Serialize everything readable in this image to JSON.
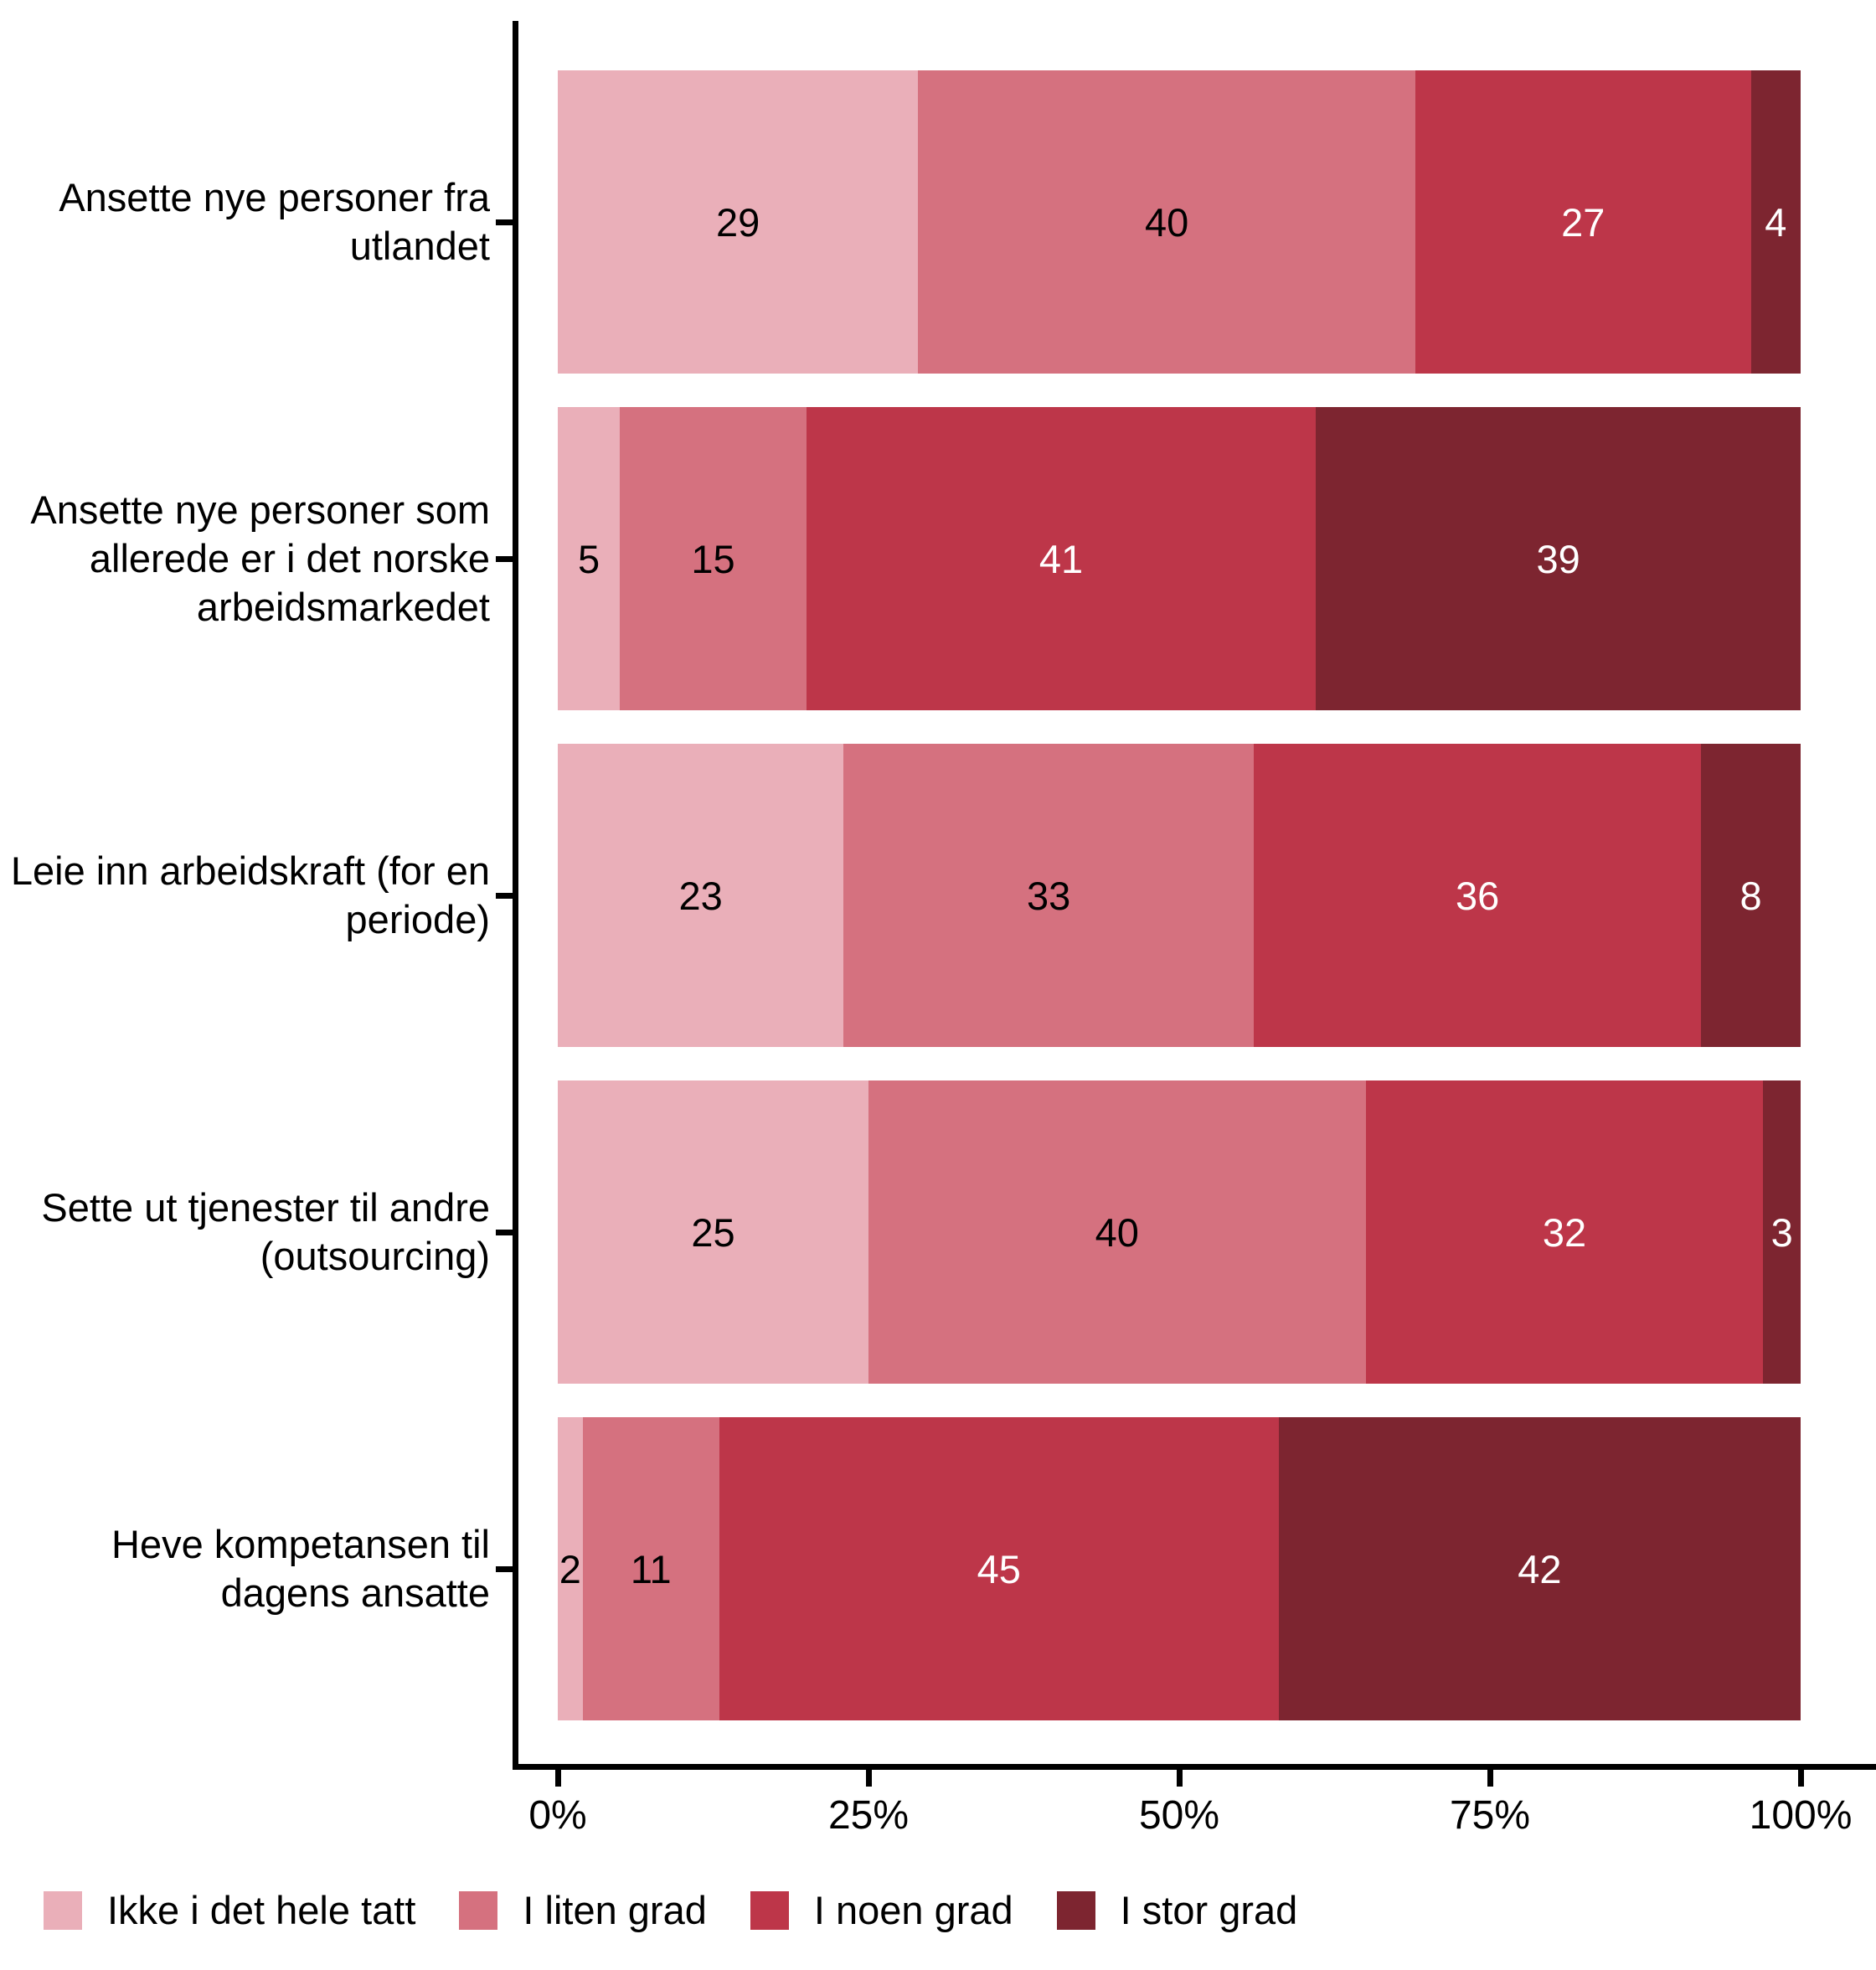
{
  "chart_data": {
    "type": "bar",
    "variant": "horizontal-stacked-100-percent",
    "title": "",
    "xlabel": "",
    "ylabel": "",
    "grid": false,
    "categories": [
      "Ansette nye personer fra utlandet",
      "Ansette nye personer som allerede er i det norske arbeidsmarkedet",
      "Leie inn arbeidskraft (for en periode)",
      "Sette ut tjenester til andre (outsourcing)",
      "Heve kompetansen til dagens ansatte"
    ],
    "series": [
      {
        "name": "Ikke i det hele tatt",
        "color": "#EAAFB9",
        "label_color": "#000000",
        "values": [
          29,
          5,
          23,
          25,
          2
        ]
      },
      {
        "name": "I liten grad",
        "color": "#D5717F",
        "label_color": "#000000",
        "values": [
          40,
          15,
          33,
          40,
          11
        ]
      },
      {
        "name": "I noen grad",
        "color": "#BD3649",
        "label_color": "#ffffff",
        "values": [
          27,
          41,
          36,
          32,
          45
        ]
      },
      {
        "name": "I stor grad",
        "color": "#7D2530",
        "label_color": "#ffffff",
        "values": [
          4,
          39,
          8,
          3,
          42
        ]
      }
    ],
    "x_axis": {
      "min": 0,
      "max": 100,
      "ticks": [
        "0%",
        "25%",
        "50%",
        "75%",
        "100%"
      ]
    },
    "legend": {
      "position": "bottom-left"
    },
    "axis_color": "#000000"
  }
}
